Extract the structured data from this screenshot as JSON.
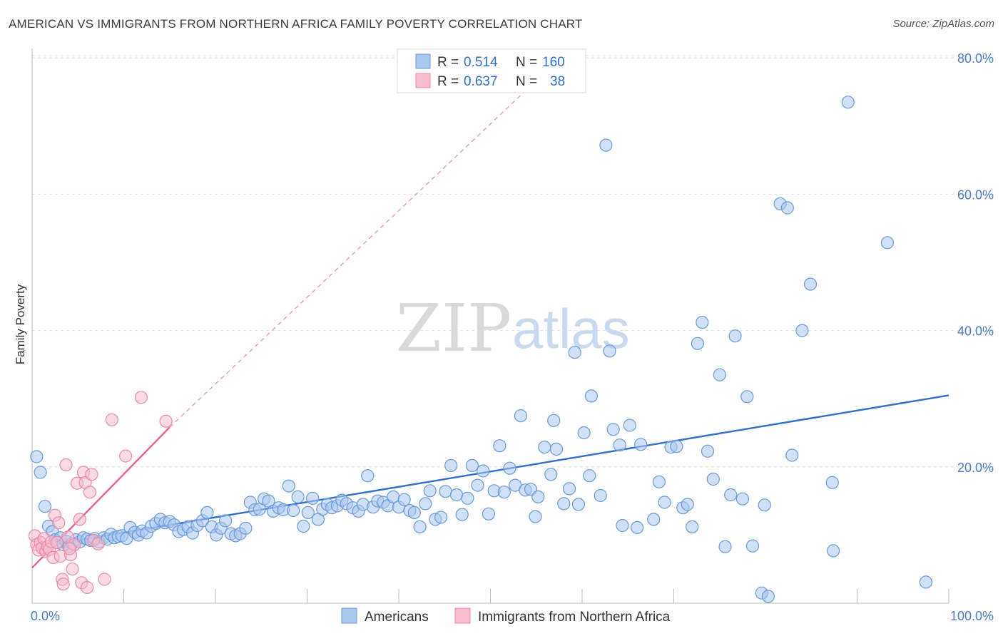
{
  "title": "AMERICAN VS IMMIGRANTS FROM NORTHERN AFRICA FAMILY POVERTY CORRELATION CHART",
  "source": "Source: ZipAtlas.com",
  "watermark": {
    "zip": "ZIP",
    "atlas": "atlas"
  },
  "colors": {
    "americans_fill": "#a9c8f0",
    "americans_stroke": "#6a9ad8",
    "americans_line": "#2f6fd0",
    "immigrants_fill": "#f6bccd",
    "immigrants_stroke": "#e98aa8",
    "immigrants_line": "#e8628c",
    "tick_text": "#4a7cc7",
    "grid": "#e3e3e3"
  },
  "legend": {
    "rows": [
      {
        "r_label": "R =",
        "r_value": "0.514",
        "n_label": "N =",
        "n_value": "160"
      },
      {
        "r_label": "R =",
        "r_value": "0.637",
        "n_label": "N =",
        "n_value": "38"
      }
    ]
  },
  "chart_data": {
    "type": "scatter",
    "title": "AMERICAN VS IMMIGRANTS FROM NORTHERN AFRICA FAMILY POVERTY CORRELATION CHART",
    "xlabel": "",
    "ylabel": "Family Poverty",
    "xlim": [
      0,
      100
    ],
    "ylim": [
      0,
      85
    ],
    "x_tick_labels": [
      "0.0%",
      "100.0%"
    ],
    "y_ticks": [
      20,
      40,
      60,
      80
    ],
    "y_tick_labels": [
      "20.0%",
      "40.0%",
      "60.0%",
      "80.0%"
    ],
    "grid": true,
    "legend_position": "top-center",
    "series": [
      {
        "name": "Americans",
        "trend": {
          "x": [
            3,
            100
          ],
          "y": [
            8.8,
            30.5
          ],
          "style": "solid"
        },
        "points": [
          [
            0.5,
            21.5
          ],
          [
            0.9,
            19.2
          ],
          [
            1.4,
            14.2
          ],
          [
            1.8,
            11.3
          ],
          [
            2.2,
            10.5
          ],
          [
            2.5,
            9.3
          ],
          [
            2.8,
            8.9
          ],
          [
            3.1,
            9.6
          ],
          [
            3.4,
            8.6
          ],
          [
            3.7,
            9.1
          ],
          [
            4.0,
            8.3
          ],
          [
            4.4,
            8.8
          ],
          [
            4.8,
            9.3
          ],
          [
            5.2,
            9.0
          ],
          [
            5.6,
            9.6
          ],
          [
            6.0,
            9.4
          ],
          [
            6.4,
            9.2
          ],
          [
            6.8,
            9.5
          ],
          [
            7.3,
            9.0
          ],
          [
            7.8,
            9.6
          ],
          [
            8.2,
            9.4
          ],
          [
            8.6,
            10.1
          ],
          [
            9.0,
            9.6
          ],
          [
            9.4,
            9.8
          ],
          [
            9.8,
            9.9
          ],
          [
            10.3,
            9.5
          ],
          [
            10.7,
            11.1
          ],
          [
            11.2,
            10.4
          ],
          [
            11.6,
            10.0
          ],
          [
            12.0,
            10.6
          ],
          [
            12.5,
            10.3
          ],
          [
            13.0,
            11.3
          ],
          [
            13.5,
            11.7
          ],
          [
            14.0,
            12.3
          ],
          [
            14.5,
            11.8
          ],
          [
            15.0,
            12.0
          ],
          [
            15.5,
            11.5
          ],
          [
            16.0,
            10.5
          ],
          [
            16.5,
            10.8
          ],
          [
            17.0,
            11.2
          ],
          [
            17.5,
            10.3
          ],
          [
            18.0,
            11.4
          ],
          [
            18.6,
            12.1
          ],
          [
            19.1,
            13.3
          ],
          [
            19.6,
            11.2
          ],
          [
            20.1,
            10.0
          ],
          [
            20.6,
            11.0
          ],
          [
            21.1,
            12.1
          ],
          [
            21.7,
            10.2
          ],
          [
            22.2,
            9.9
          ],
          [
            22.7,
            10.2
          ],
          [
            23.3,
            11.0
          ],
          [
            23.8,
            14.8
          ],
          [
            24.3,
            13.7
          ],
          [
            24.8,
            13.8
          ],
          [
            25.3,
            15.3
          ],
          [
            25.8,
            15.0
          ],
          [
            26.3,
            13.5
          ],
          [
            26.9,
            14.0
          ],
          [
            27.4,
            13.7
          ],
          [
            28.0,
            17.2
          ],
          [
            28.5,
            13.6
          ],
          [
            29.0,
            15.6
          ],
          [
            29.6,
            11.3
          ],
          [
            30.1,
            13.3
          ],
          [
            30.6,
            15.4
          ],
          [
            31.2,
            12.3
          ],
          [
            31.7,
            13.8
          ],
          [
            32.2,
            14.5
          ],
          [
            32.7,
            14.0
          ],
          [
            33.3,
            14.3
          ],
          [
            33.8,
            15.1
          ],
          [
            34.3,
            14.6
          ],
          [
            35.0,
            14.0
          ],
          [
            35.6,
            13.5
          ],
          [
            36.1,
            14.5
          ],
          [
            36.6,
            18.7
          ],
          [
            37.2,
            14.1
          ],
          [
            37.7,
            15.0
          ],
          [
            38.3,
            14.8
          ],
          [
            38.8,
            14.3
          ],
          [
            39.4,
            15.6
          ],
          [
            40.0,
            14.1
          ],
          [
            40.6,
            15.2
          ],
          [
            41.2,
            13.6
          ],
          [
            41.7,
            13.3
          ],
          [
            42.3,
            11.2
          ],
          [
            42.9,
            14.6
          ],
          [
            43.4,
            16.5
          ],
          [
            44.0,
            12.3
          ],
          [
            44.6,
            12.6
          ],
          [
            45.1,
            16.4
          ],
          [
            45.7,
            20.2
          ],
          [
            46.3,
            15.9
          ],
          [
            46.9,
            13.0
          ],
          [
            47.5,
            15.4
          ],
          [
            48.0,
            20.2
          ],
          [
            48.6,
            17.3
          ],
          [
            49.2,
            19.4
          ],
          [
            49.8,
            13.1
          ],
          [
            50.4,
            16.5
          ],
          [
            51.0,
            23.1
          ],
          [
            51.5,
            16.3
          ],
          [
            52.1,
            19.8
          ],
          [
            52.7,
            17.3
          ],
          [
            53.3,
            27.5
          ],
          [
            53.8,
            16.6
          ],
          [
            54.4,
            16.7
          ],
          [
            54.9,
            12.7
          ],
          [
            55.2,
            15.6
          ],
          [
            55.9,
            22.9
          ],
          [
            56.6,
            18.9
          ],
          [
            56.9,
            26.8
          ],
          [
            57.2,
            22.6
          ],
          [
            58.0,
            14.6
          ],
          [
            58.6,
            16.8
          ],
          [
            59.2,
            36.8
          ],
          [
            59.6,
            14.5
          ],
          [
            60.2,
            25.0
          ],
          [
            60.8,
            18.7
          ],
          [
            61.0,
            30.4
          ],
          [
            62.0,
            15.8
          ],
          [
            62.6,
            67.2
          ],
          [
            63.0,
            37.0
          ],
          [
            63.4,
            25.5
          ],
          [
            64.1,
            23.2
          ],
          [
            64.4,
            11.4
          ],
          [
            65.2,
            26.1
          ],
          [
            66.0,
            11.1
          ],
          [
            66.4,
            23.3
          ],
          [
            67.8,
            12.3
          ],
          [
            68.4,
            17.8
          ],
          [
            69.0,
            14.8
          ],
          [
            69.7,
            22.9
          ],
          [
            70.3,
            23.0
          ],
          [
            71.0,
            14.0
          ],
          [
            71.5,
            14.5
          ],
          [
            72.0,
            11.2
          ],
          [
            72.6,
            38.1
          ],
          [
            73.1,
            41.2
          ],
          [
            73.7,
            22.3
          ],
          [
            74.3,
            18.2
          ],
          [
            75.0,
            33.5
          ],
          [
            75.6,
            8.3
          ],
          [
            76.2,
            15.9
          ],
          [
            76.7,
            39.2
          ],
          [
            77.5,
            15.3
          ],
          [
            78.0,
            30.3
          ],
          [
            78.6,
            8.4
          ],
          [
            79.6,
            1.5
          ],
          [
            80.3,
            1.0
          ],
          [
            79.9,
            14.4
          ],
          [
            81.6,
            58.6
          ],
          [
            82.4,
            58.0
          ],
          [
            82.9,
            21.7
          ],
          [
            84.0,
            40.0
          ],
          [
            84.9,
            46.8
          ],
          [
            87.3,
            17.7
          ],
          [
            87.4,
            7.7
          ],
          [
            89.0,
            73.5
          ],
          [
            93.3,
            52.9
          ],
          [
            97.5,
            3.1
          ]
        ]
      },
      {
        "name": "Immigrants from Northern Africa",
        "trend": {
          "x": [
            0,
            15
          ],
          "y": [
            5.2,
            25.8
          ],
          "style": "solid"
        },
        "trend_extension": {
          "x": [
            15,
            54
          ],
          "y": [
            25.8,
            75.4
          ],
          "style": "dashed"
        },
        "points": [
          [
            0.3,
            9.9
          ],
          [
            0.5,
            8.6
          ],
          [
            0.7,
            7.8
          ],
          [
            0.9,
            8.9
          ],
          [
            1.1,
            8.1
          ],
          [
            1.3,
            9.5
          ],
          [
            1.5,
            7.6
          ],
          [
            1.7,
            8.3
          ],
          [
            1.9,
            7.9
          ],
          [
            2.1,
            9.0
          ],
          [
            2.3,
            6.7
          ],
          [
            2.5,
            12.9
          ],
          [
            2.7,
            8.9
          ],
          [
            2.9,
            11.8
          ],
          [
            3.1,
            6.9
          ],
          [
            3.3,
            3.5
          ],
          [
            3.4,
            2.8
          ],
          [
            3.7,
            20.3
          ],
          [
            3.9,
            9.7
          ],
          [
            4.2,
            7.1
          ],
          [
            4.4,
            5.0
          ],
          [
            4.6,
            8.6
          ],
          [
            4.9,
            17.6
          ],
          [
            5.2,
            12.3
          ],
          [
            5.4,
            3.0
          ],
          [
            5.6,
            19.2
          ],
          [
            5.8,
            17.7
          ],
          [
            6.0,
            2.3
          ],
          [
            6.3,
            16.3
          ],
          [
            6.5,
            18.9
          ],
          [
            6.7,
            9.2
          ],
          [
            7.2,
            8.7
          ],
          [
            7.9,
            3.5
          ],
          [
            8.7,
            26.9
          ],
          [
            10.2,
            21.6
          ],
          [
            11.9,
            30.2
          ],
          [
            14.6,
            26.7
          ],
          [
            4.1,
            8.0
          ]
        ]
      }
    ]
  }
}
